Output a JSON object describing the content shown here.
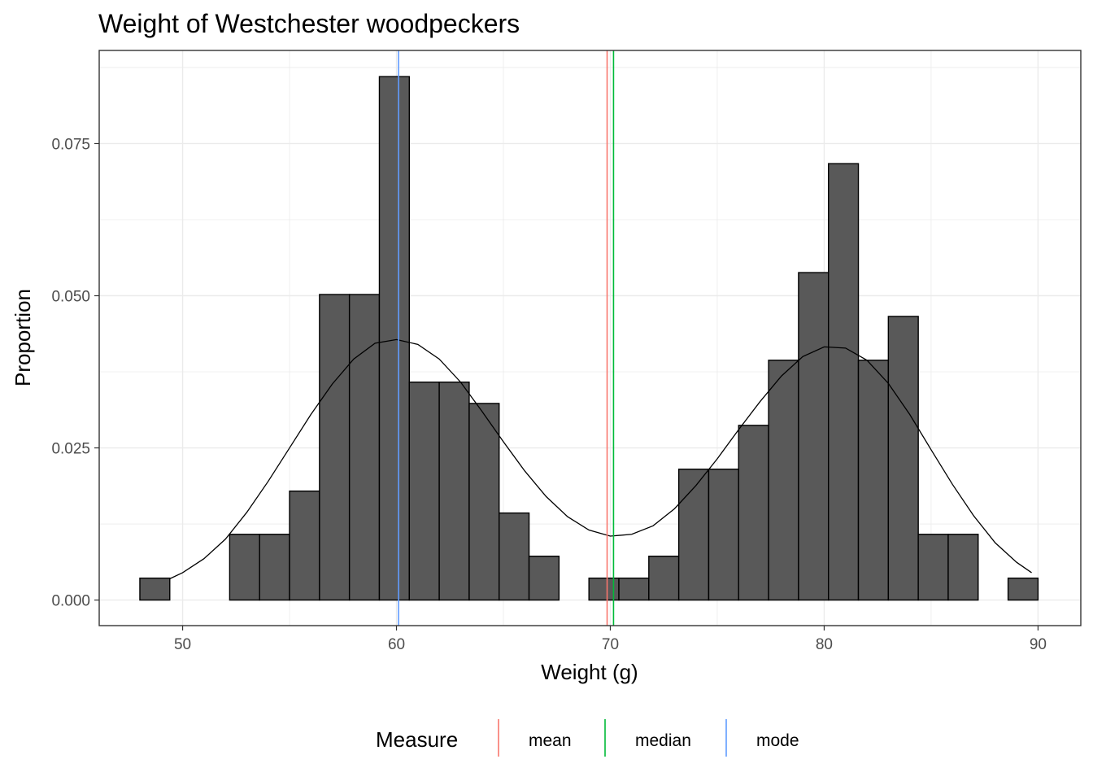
{
  "chart_data": {
    "type": "bar",
    "title": "Weight of  Westchester woodpeckers",
    "xlabel": "Weight (g)",
    "ylabel": "Proportion",
    "xlim": [
      46.1,
      92.0
    ],
    "ylim": [
      -0.0042,
      0.0903
    ],
    "x_ticks": [
      50,
      60,
      70,
      80,
      90
    ],
    "x_tick_labels": [
      "50",
      "60",
      "70",
      "80",
      "90"
    ],
    "y_ticks": [
      0.0,
      0.025,
      0.05,
      0.075
    ],
    "y_tick_labels": [
      "0.000",
      "0.025",
      "0.050",
      "0.075"
    ],
    "grid": true,
    "bin_width": 1.4,
    "bins": [
      {
        "x0": 48.0,
        "x1": 49.4,
        "value": 0.0036
      },
      {
        "x0": 49.4,
        "x1": 50.8,
        "value": 0.0
      },
      {
        "x0": 50.8,
        "x1": 52.2,
        "value": 0.0
      },
      {
        "x0": 52.2,
        "x1": 53.6,
        "value": 0.0108
      },
      {
        "x0": 53.6,
        "x1": 55.0,
        "value": 0.0108
      },
      {
        "x0": 55.0,
        "x1": 56.4,
        "value": 0.0179
      },
      {
        "x0": 56.4,
        "x1": 57.8,
        "value": 0.0502
      },
      {
        "x0": 57.8,
        "x1": 59.2,
        "value": 0.0502
      },
      {
        "x0": 59.2,
        "x1": 60.6,
        "value": 0.086
      },
      {
        "x0": 60.6,
        "x1": 62.0,
        "value": 0.0358
      },
      {
        "x0": 62.0,
        "x1": 63.4,
        "value": 0.0358
      },
      {
        "x0": 63.4,
        "x1": 64.8,
        "value": 0.0323
      },
      {
        "x0": 64.8,
        "x1": 66.2,
        "value": 0.0143
      },
      {
        "x0": 66.2,
        "x1": 67.6,
        "value": 0.0072
      },
      {
        "x0": 67.6,
        "x1": 69.0,
        "value": 0.0
      },
      {
        "x0": 69.0,
        "x1": 70.4,
        "value": 0.0036
      },
      {
        "x0": 70.4,
        "x1": 71.8,
        "value": 0.0036
      },
      {
        "x0": 71.8,
        "x1": 73.2,
        "value": 0.0072
      },
      {
        "x0": 73.2,
        "x1": 74.6,
        "value": 0.0215
      },
      {
        "x0": 74.6,
        "x1": 76.0,
        "value": 0.0215
      },
      {
        "x0": 76.0,
        "x1": 77.4,
        "value": 0.0287
      },
      {
        "x0": 77.4,
        "x1": 78.8,
        "value": 0.0394
      },
      {
        "x0": 78.8,
        "x1": 80.2,
        "value": 0.0538
      },
      {
        "x0": 80.2,
        "x1": 81.6,
        "value": 0.0717
      },
      {
        "x0": 81.6,
        "x1": 83.0,
        "value": 0.0394
      },
      {
        "x0": 83.0,
        "x1": 84.4,
        "value": 0.0466
      },
      {
        "x0": 84.4,
        "x1": 85.8,
        "value": 0.0108
      },
      {
        "x0": 85.8,
        "x1": 87.2,
        "value": 0.0108
      },
      {
        "x0": 87.2,
        "x1": 88.6,
        "value": 0.0
      },
      {
        "x0": 88.6,
        "x1": 90.0,
        "value": 0.0036
      }
    ],
    "density_curve": {
      "x": [
        49.4,
        50.0,
        51.0,
        52.0,
        53.0,
        54.0,
        55.0,
        56.0,
        57.0,
        58.0,
        59.0,
        60.0,
        61.0,
        62.0,
        63.0,
        64.0,
        65.0,
        66.0,
        67.0,
        68.0,
        69.0,
        70.0,
        71.0,
        72.0,
        73.0,
        74.0,
        75.0,
        76.0,
        77.0,
        78.0,
        79.0,
        80.0,
        81.0,
        82.0,
        83.0,
        84.0,
        85.0,
        86.0,
        87.0,
        88.0,
        89.0,
        89.7
      ],
      "y": [
        0.0035,
        0.0045,
        0.0068,
        0.01,
        0.0144,
        0.0195,
        0.025,
        0.0305,
        0.0355,
        0.0396,
        0.0422,
        0.0428,
        0.042,
        0.0396,
        0.0358,
        0.031,
        0.026,
        0.0212,
        0.017,
        0.0137,
        0.0115,
        0.0105,
        0.0108,
        0.0122,
        0.015,
        0.0188,
        0.0232,
        0.028,
        0.0326,
        0.0368,
        0.04,
        0.0416,
        0.0414,
        0.0394,
        0.0356,
        0.0305,
        0.0247,
        0.019,
        0.0138,
        0.0094,
        0.0062,
        0.0045
      ]
    },
    "reference_lines": [
      {
        "measure": "mean",
        "x": 69.85,
        "color": "#F8766D"
      },
      {
        "measure": "median",
        "x": 70.15,
        "color": "#00BA38"
      },
      {
        "measure": "mode",
        "x": 60.1,
        "color": "#619CFF"
      }
    ],
    "legend": {
      "title": "Measure",
      "position": "bottom",
      "items": [
        {
          "label": "mean",
          "color": "#F8766D"
        },
        {
          "label": "median",
          "color": "#00BA38"
        },
        {
          "label": "mode",
          "color": "#619CFF"
        }
      ]
    },
    "colors": {
      "bar_fill": "#595959",
      "bar_stroke": "#000000",
      "curve": "#000000",
      "grid": "#ebebeb",
      "panel_border": "#333333"
    }
  }
}
